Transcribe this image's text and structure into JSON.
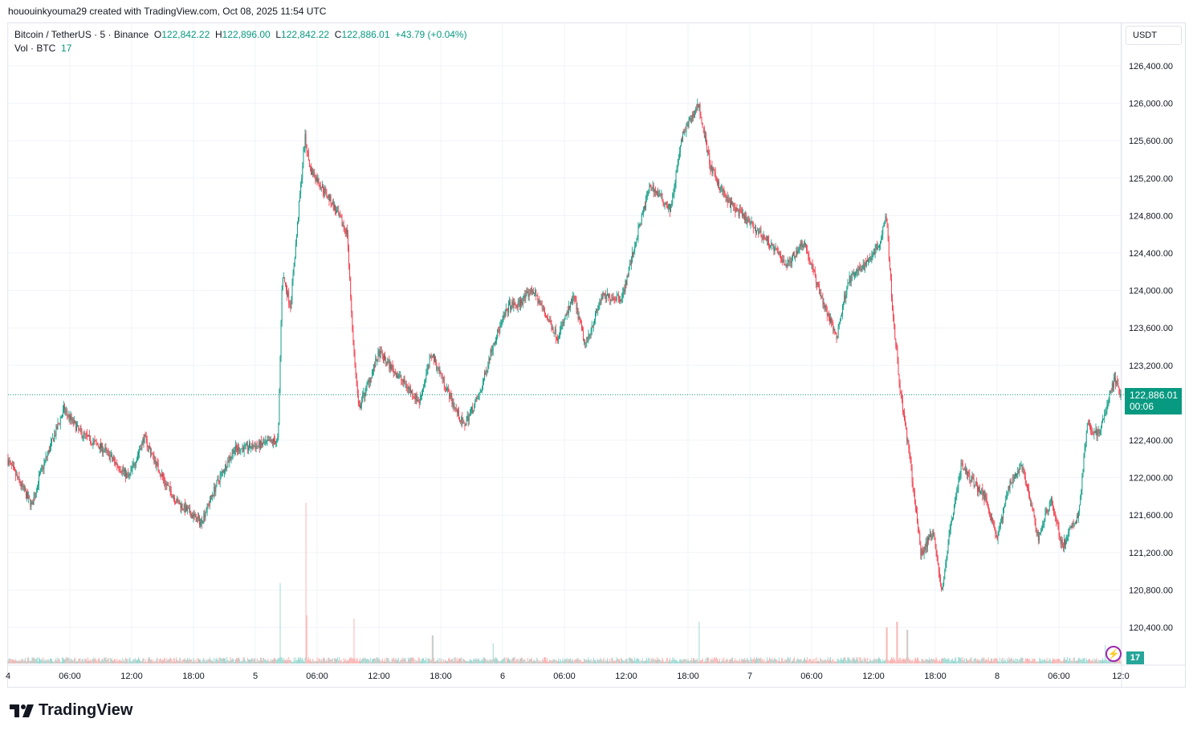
{
  "credit": "hououinkyouma29 created with TradingView.com, Oct 08, 2025 11:54 UTC",
  "legend": {
    "symbol": "Bitcoin / TetherUS · 5 · Binance",
    "o_label": "O",
    "o": "122,842.22",
    "h_label": "H",
    "h": "122,896.00",
    "l_label": "L",
    "l": "122,842.22",
    "c_label": "C",
    "c": "122,886.01",
    "change": "+43.79 (+0.04%)",
    "vol_label": "Vol · BTC",
    "vol": "17"
  },
  "currency": "USDT",
  "last_price": {
    "price": "122,886.01",
    "countdown": "00:06"
  },
  "volume_badge": "17",
  "logo": "TradingView",
  "colors": {
    "up": "#089981",
    "down": "#f23645",
    "vol_up": "#8fd3cc",
    "vol_down": "#f7a9a7"
  },
  "chart_data": {
    "type": "candlestick",
    "title": "Bitcoin / TetherUS · 5 · Binance",
    "interval_minutes": 5,
    "x_unit": "hours since Oct 4 00:00 UTC",
    "xlim": [
      0,
      108
    ],
    "ylim": [
      120200,
      126600
    ],
    "y_ticks": [
      "126,400.00",
      "126,000.00",
      "125,600.00",
      "125,200.00",
      "124,800.00",
      "124,400.00",
      "124,000.00",
      "123,600.00",
      "123,200.00",
      "122,400.00",
      "122,000.00",
      "121,600.00",
      "121,200.00",
      "120,800.00",
      "120,400.00"
    ],
    "y_tick_values": [
      126400,
      126000,
      125600,
      125200,
      124800,
      124400,
      124000,
      123600,
      123200,
      122400,
      122000,
      121600,
      121200,
      120800,
      120400
    ],
    "x_ticks": [
      {
        "h": 0,
        "label": "4"
      },
      {
        "h": 6,
        "label": "06:00"
      },
      {
        "h": 12,
        "label": "12:00"
      },
      {
        "h": 18,
        "label": "18:00"
      },
      {
        "h": 24,
        "label": "5"
      },
      {
        "h": 30,
        "label": "06:00"
      },
      {
        "h": 36,
        "label": "12:00"
      },
      {
        "h": 42,
        "label": "18:00"
      },
      {
        "h": 48,
        "label": "6"
      },
      {
        "h": 54,
        "label": "06:00"
      },
      {
        "h": 60,
        "label": "12:00"
      },
      {
        "h": 66,
        "label": "18:00"
      },
      {
        "h": 72,
        "label": "7"
      },
      {
        "h": 78,
        "label": "06:00"
      },
      {
        "h": 84,
        "label": "12:00"
      },
      {
        "h": 90,
        "label": "18:00"
      },
      {
        "h": 96,
        "label": "8"
      },
      {
        "h": 102,
        "label": "06:00"
      },
      {
        "h": 108,
        "label": "12:0"
      }
    ],
    "price_path": [
      [
        0,
        122200
      ],
      [
        2.4,
        121700
      ],
      [
        3.1,
        122000
      ],
      [
        5.5,
        122730
      ],
      [
        7.1,
        122480
      ],
      [
        9.4,
        122300
      ],
      [
        11.8,
        122000
      ],
      [
        13.3,
        122430
      ],
      [
        15.3,
        121950
      ],
      [
        16.5,
        121740
      ],
      [
        18.8,
        121520
      ],
      [
        20.4,
        121950
      ],
      [
        22,
        122300
      ],
      [
        24.3,
        122340
      ],
      [
        26.3,
        122400
      ],
      [
        26.7,
        124180
      ],
      [
        27.5,
        123840
      ],
      [
        28.9,
        125640
      ],
      [
        29.4,
        125300
      ],
      [
        31.4,
        124960
      ],
      [
        33,
        124610
      ],
      [
        33.6,
        123410
      ],
      [
        34.1,
        122730
      ],
      [
        36.1,
        123330
      ],
      [
        38.1,
        123070
      ],
      [
        40,
        122810
      ],
      [
        41.2,
        123330
      ],
      [
        43.2,
        122810
      ],
      [
        44.3,
        122550
      ],
      [
        45.9,
        122900
      ],
      [
        47.1,
        123410
      ],
      [
        48.7,
        123840
      ],
      [
        49.5,
        123840
      ],
      [
        51,
        124010
      ],
      [
        53.4,
        123500
      ],
      [
        55,
        123930
      ],
      [
        56.1,
        123410
      ],
      [
        57.7,
        123930
      ],
      [
        59.7,
        123930
      ],
      [
        61.2,
        124610
      ],
      [
        62.4,
        125130
      ],
      [
        64.4,
        124870
      ],
      [
        65.5,
        125640
      ],
      [
        67.1,
        125990
      ],
      [
        68.3,
        125300
      ],
      [
        69.9,
        124960
      ],
      [
        71.4,
        124790
      ],
      [
        73.8,
        124530
      ],
      [
        75.7,
        124270
      ],
      [
        77.3,
        124530
      ],
      [
        79.3,
        123840
      ],
      [
        80.5,
        123500
      ],
      [
        81.6,
        124100
      ],
      [
        83.2,
        124270
      ],
      [
        84.8,
        124530
      ],
      [
        85.3,
        124870
      ],
      [
        85.9,
        123840
      ],
      [
        86.7,
        122900
      ],
      [
        87.5,
        122300
      ],
      [
        88.7,
        121180
      ],
      [
        89.9,
        121440
      ],
      [
        90.7,
        120750
      ],
      [
        91.5,
        121440
      ],
      [
        92.6,
        122130
      ],
      [
        93.8,
        121950
      ],
      [
        95,
        121780
      ],
      [
        96.1,
        121350
      ],
      [
        97.3,
        121950
      ],
      [
        98.5,
        122130
      ],
      [
        100.1,
        121350
      ],
      [
        101.3,
        121780
      ],
      [
        102.4,
        121260
      ],
      [
        104,
        121610
      ],
      [
        104.8,
        122550
      ],
      [
        106,
        122470
      ],
      [
        107.5,
        123070
      ],
      [
        108,
        122886.01
      ]
    ],
    "volume_spikes": [
      [
        26.4,
        1000
      ],
      [
        28.9,
        2000
      ],
      [
        29,
        600
      ],
      [
        33.6,
        560
      ],
      [
        41.2,
        350
      ],
      [
        47.1,
        250
      ],
      [
        67.1,
        520
      ],
      [
        85.3,
        450
      ],
      [
        86.3,
        520
      ],
      [
        87.3,
        420
      ],
      [
        106.5,
        230
      ]
    ],
    "last_volume": 17
  }
}
